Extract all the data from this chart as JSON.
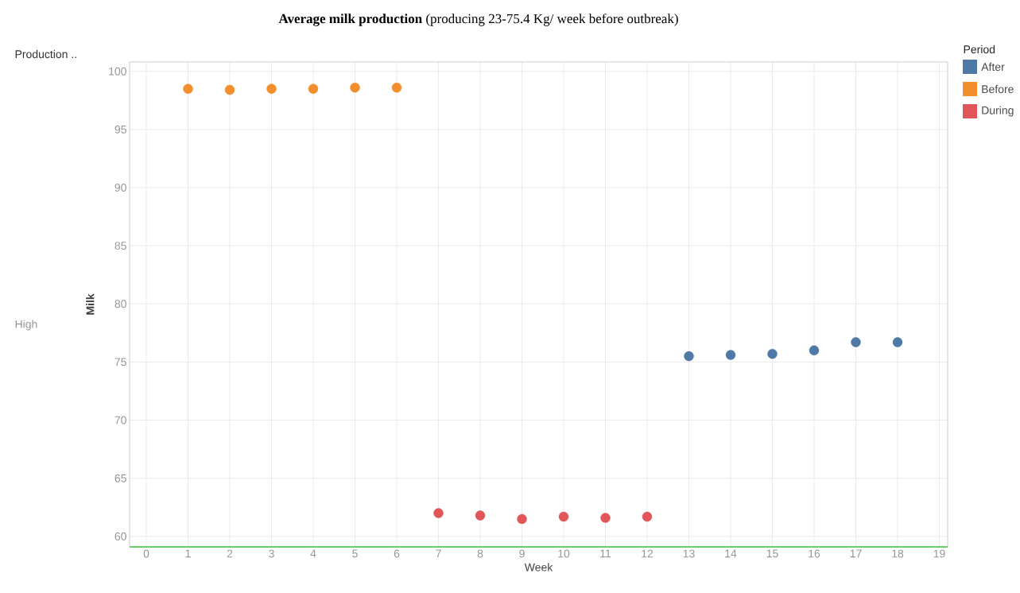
{
  "chart_data": {
    "type": "scatter",
    "title": "**Average milk production** (producing 23-75.4  Kg/ week before outbreak)",
    "xlabel": "Week",
    "ylabel": "Milk",
    "legend_title": "Period",
    "legend": "top right",
    "grid": true,
    "annotations": [
      "Production ..",
      "High"
    ],
    "xlim": [
      -0.4,
      19.2
    ],
    "xticks": [
      0,
      1,
      2,
      3,
      4,
      5,
      6,
      7,
      8,
      9,
      10,
      11,
      12,
      13,
      14,
      15,
      16,
      17,
      18,
      19
    ],
    "ylim": [
      59.1,
      100.8
    ],
    "yticks": [
      60,
      65,
      70,
      75,
      80,
      85,
      90,
      95,
      100
    ],
    "series": [
      {
        "name": "After",
        "color": "#4e79a7",
        "x": [
          13,
          14,
          15,
          16,
          17,
          18
        ],
        "values": [
          75.5,
          75.6,
          75.7,
          76.0,
          76.7,
          76.7
        ]
      },
      {
        "name": "Before",
        "color": "#f28e2b",
        "x": [
          1,
          2,
          3,
          4,
          5,
          6
        ],
        "values": [
          98.5,
          98.4,
          98.5,
          98.5,
          98.6,
          98.6
        ]
      },
      {
        "name": "During",
        "color": "#e15759",
        "x": [
          7,
          8,
          9,
          10,
          11,
          12
        ],
        "values": [
          62.0,
          61.8,
          61.5,
          61.7,
          61.6,
          61.7
        ]
      }
    ]
  }
}
